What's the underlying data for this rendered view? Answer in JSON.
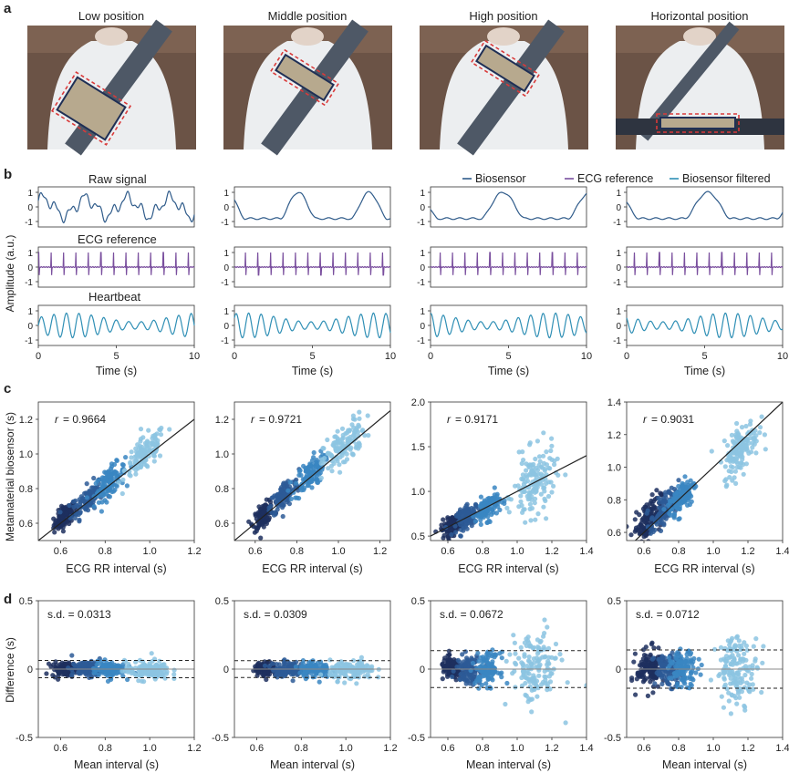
{
  "panel_a": {
    "letter": "a",
    "titles": [
      "Low position",
      "Middle position",
      "High position",
      "Horizontal position"
    ]
  },
  "panel_b": {
    "letter": "b",
    "ylabel": "Amplitude (a.u.)",
    "row_titles": [
      "Raw signal",
      "ECG reference",
      "Heartbeat"
    ],
    "legend": [
      "Biosensor",
      "ECG reference",
      "Biosensor filtered"
    ],
    "xlabel": "Time (s)",
    "xticks": [
      "0",
      "5",
      "10"
    ],
    "yticks": [
      "1",
      "0",
      "-1"
    ],
    "colors": {
      "biosensor": "#2f5b8a",
      "ecg": "#7a4f9e",
      "filtered": "#2f8fb5"
    }
  },
  "panel_c": {
    "letter": "c",
    "ylabel": "Metamaterial biosensor (s)",
    "xlabel": "ECG RR interval (s)",
    "r_prefix": "r",
    "r_values": [
      "= 0.9664",
      "= 0.9721",
      "= 0.9171",
      "= 0.9031"
    ]
  },
  "panel_d": {
    "letter": "d",
    "ylabel": "Difference (s)",
    "xlabel": "Mean interval (s)",
    "sd_values": [
      "s.d. = 0.0313",
      "s.d. = 0.0309",
      "s.d. = 0.0672",
      "s.d. = 0.0712"
    ]
  },
  "chart_data": [
    {
      "type": "scatter",
      "title": "r = 0.9664",
      "xlabel": "ECG RR interval (s)",
      "ylabel": "Metamaterial biosensor (s)",
      "xlim": [
        0.5,
        1.2
      ],
      "ylim": [
        0.5,
        1.3
      ],
      "xticks": [
        0.6,
        0.8,
        1.0,
        1.2
      ],
      "yticks": [
        0.6,
        0.8,
        1.0,
        1.2
      ],
      "clusters": [
        {
          "mean": [
            0.62,
            0.64
          ],
          "sd": [
            0.025,
            0.03
          ],
          "n": 110,
          "color": "#1d2f5e"
        },
        {
          "mean": [
            0.72,
            0.74
          ],
          "sd": [
            0.035,
            0.04
          ],
          "n": 110,
          "color": "#2d5a96"
        },
        {
          "mean": [
            0.82,
            0.84
          ],
          "sd": [
            0.035,
            0.04
          ],
          "n": 110,
          "color": "#3a86c2"
        },
        {
          "mean": [
            0.98,
            1.0
          ],
          "sd": [
            0.045,
            0.05
          ],
          "n": 130,
          "color": "#8cc4e2"
        }
      ]
    },
    {
      "type": "scatter",
      "title": "r = 0.9721",
      "xlabel": "ECG RR interval (s)",
      "ylabel": "Metamaterial biosensor (s)",
      "xlim": [
        0.5,
        1.25
      ],
      "ylim": [
        0.5,
        1.3
      ],
      "xticks": [
        0.6,
        0.8,
        1.0,
        1.2
      ],
      "yticks": [
        0.6,
        0.8,
        1.0,
        1.2
      ],
      "clusters": [
        {
          "mean": [
            0.64,
            0.65
          ],
          "sd": [
            0.025,
            0.03
          ],
          "n": 110,
          "color": "#1d2f5e"
        },
        {
          "mean": [
            0.74,
            0.76
          ],
          "sd": [
            0.035,
            0.04
          ],
          "n": 110,
          "color": "#2d5a96"
        },
        {
          "mean": [
            0.86,
            0.88
          ],
          "sd": [
            0.035,
            0.045
          ],
          "n": 110,
          "color": "#3a86c2"
        },
        {
          "mean": [
            1.03,
            1.05
          ],
          "sd": [
            0.05,
            0.06
          ],
          "n": 130,
          "color": "#8cc4e2"
        }
      ]
    },
    {
      "type": "scatter",
      "title": "r = 0.9171",
      "xlabel": "ECG RR interval (s)",
      "ylabel": "",
      "xlim": [
        0.5,
        1.4
      ],
      "ylim": [
        0.45,
        2.0
      ],
      "xticks": [
        0.6,
        0.8,
        1.0,
        1.2,
        1.4
      ],
      "yticks": [
        0.5,
        1.0,
        1.5,
        2.0
      ],
      "clusters": [
        {
          "mean": [
            0.62,
            0.62
          ],
          "sd": [
            0.03,
            0.05
          ],
          "n": 110,
          "color": "#1d2f5e"
        },
        {
          "mean": [
            0.72,
            0.72
          ],
          "sd": [
            0.035,
            0.06
          ],
          "n": 110,
          "color": "#2d5a96"
        },
        {
          "mean": [
            0.83,
            0.82
          ],
          "sd": [
            0.035,
            0.07
          ],
          "n": 110,
          "color": "#3a86c2"
        },
        {
          "mean": [
            1.1,
            1.08
          ],
          "sd": [
            0.06,
            0.18
          ],
          "n": 150,
          "color": "#8cc4e2"
        }
      ]
    },
    {
      "type": "scatter",
      "title": "r = 0.9031",
      "xlabel": "ECG RR interval (s)",
      "ylabel": "",
      "xlim": [
        0.5,
        1.4
      ],
      "ylim": [
        0.55,
        1.4
      ],
      "xticks": [
        0.6,
        0.8,
        1.0,
        1.2,
        1.4
      ],
      "yticks": [
        0.6,
        0.8,
        1.0,
        1.2,
        1.4
      ],
      "clusters": [
        {
          "mean": [
            0.62,
            0.68
          ],
          "sd": [
            0.04,
            0.06
          ],
          "n": 130,
          "color": "#1d2f5e"
        },
        {
          "mean": [
            0.72,
            0.74
          ],
          "sd": [
            0.04,
            0.05
          ],
          "n": 110,
          "color": "#2d5a96"
        },
        {
          "mean": [
            0.82,
            0.82
          ],
          "sd": [
            0.04,
            0.05
          ],
          "n": 110,
          "color": "#3a86c2"
        },
        {
          "mean": [
            1.16,
            1.12
          ],
          "sd": [
            0.05,
            0.07
          ],
          "n": 150,
          "color": "#8cc4e2"
        }
      ]
    },
    {
      "type": "scatter",
      "title": "s.d. = 0.0313",
      "xlabel": "Mean interval (s)",
      "ylabel": "Difference (s)",
      "xlim": [
        0.5,
        1.2
      ],
      "ylim": [
        -0.5,
        0.5
      ],
      "xticks": [
        0.6,
        0.8,
        1.0,
        1.2
      ],
      "yticks": [
        -0.5,
        0,
        0.5
      ],
      "limits": [
        0.063,
        -0.063
      ],
      "clusters": [
        {
          "mean": [
            0.62,
            0.0
          ],
          "sd": [
            0.03,
            0.025
          ],
          "n": 110,
          "color": "#1d2f5e"
        },
        {
          "mean": [
            0.72,
            0.0
          ],
          "sd": [
            0.035,
            0.028
          ],
          "n": 110,
          "color": "#2d5a96"
        },
        {
          "mean": [
            0.82,
            0.0
          ],
          "sd": [
            0.035,
            0.03
          ],
          "n": 110,
          "color": "#3a86c2"
        },
        {
          "mean": [
            0.99,
            -0.01
          ],
          "sd": [
            0.05,
            0.035
          ],
          "n": 130,
          "color": "#8cc4e2"
        }
      ]
    },
    {
      "type": "scatter",
      "title": "s.d. = 0.0309",
      "xlabel": "Mean interval (s)",
      "ylabel": "",
      "xlim": [
        0.5,
        1.2
      ],
      "ylim": [
        -0.5,
        0.5
      ],
      "xticks": [
        0.6,
        0.8,
        1.0,
        1.2
      ],
      "yticks": [
        -0.5,
        0,
        0.5
      ],
      "limits": [
        0.062,
        -0.062
      ],
      "clusters": [
        {
          "mean": [
            0.64,
            0.0
          ],
          "sd": [
            0.025,
            0.025
          ],
          "n": 110,
          "color": "#1d2f5e"
        },
        {
          "mean": [
            0.74,
            0.0
          ],
          "sd": [
            0.035,
            0.028
          ],
          "n": 110,
          "color": "#2d5a96"
        },
        {
          "mean": [
            0.86,
            0.0
          ],
          "sd": [
            0.035,
            0.03
          ],
          "n": 110,
          "color": "#3a86c2"
        },
        {
          "mean": [
            1.03,
            -0.01
          ],
          "sd": [
            0.05,
            0.035
          ],
          "n": 130,
          "color": "#8cc4e2"
        }
      ]
    },
    {
      "type": "scatter",
      "title": "s.d. = 0.0672",
      "xlabel": "Mean interval (s)",
      "ylabel": "",
      "xlim": [
        0.5,
        1.4
      ],
      "ylim": [
        -0.5,
        0.5
      ],
      "xticks": [
        0.6,
        0.8,
        1.0,
        1.2,
        1.4
      ],
      "yticks": [
        -0.5,
        0,
        0.5
      ],
      "limits": [
        0.135,
        -0.135
      ],
      "clusters": [
        {
          "mean": [
            0.62,
            0.0
          ],
          "sd": [
            0.03,
            0.04
          ],
          "n": 110,
          "color": "#1d2f5e"
        },
        {
          "mean": [
            0.72,
            0.0
          ],
          "sd": [
            0.035,
            0.05
          ],
          "n": 110,
          "color": "#2d5a96"
        },
        {
          "mean": [
            0.83,
            0.0
          ],
          "sd": [
            0.035,
            0.06
          ],
          "n": 110,
          "color": "#3a86c2"
        },
        {
          "mean": [
            1.1,
            0.0
          ],
          "sd": [
            0.07,
            0.13
          ],
          "n": 150,
          "color": "#8cc4e2"
        }
      ]
    },
    {
      "type": "scatter",
      "title": "s.d. = 0.0712",
      "xlabel": "Mean interval (s)",
      "ylabel": "",
      "xlim": [
        0.5,
        1.4
      ],
      "ylim": [
        -0.5,
        0.5
      ],
      "xticks": [
        0.6,
        0.8,
        1.0,
        1.2,
        1.4
      ],
      "yticks": [
        -0.5,
        0,
        0.5
      ],
      "limits": [
        0.14,
        -0.14
      ],
      "clusters": [
        {
          "mean": [
            0.64,
            0.0
          ],
          "sd": [
            0.04,
            0.07
          ],
          "n": 130,
          "color": "#1d2f5e"
        },
        {
          "mean": [
            0.74,
            0.0
          ],
          "sd": [
            0.04,
            0.06
          ],
          "n": 110,
          "color": "#2d5a96"
        },
        {
          "mean": [
            0.83,
            0.0
          ],
          "sd": [
            0.04,
            0.06
          ],
          "n": 110,
          "color": "#3a86c2"
        },
        {
          "mean": [
            1.14,
            0.0
          ],
          "sd": [
            0.06,
            0.12
          ],
          "n": 150,
          "color": "#8cc4e2"
        }
      ]
    }
  ]
}
